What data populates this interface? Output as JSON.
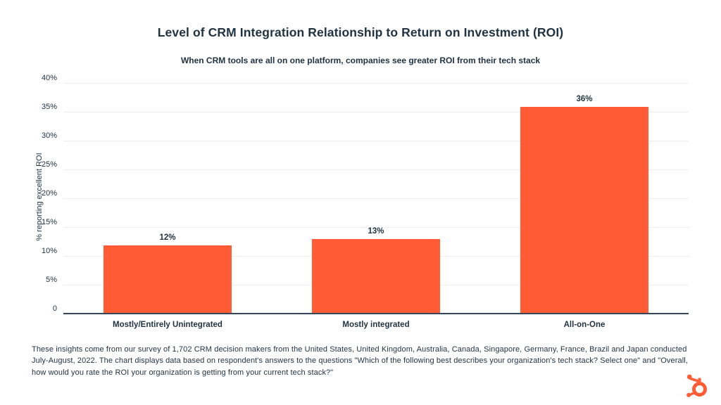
{
  "page": {
    "title": "Level of CRM Integration Relationship to Return on Investment (ROI)",
    "subtitle": "When CRM tools are all on one platform, companies see greater ROI from their tech stack",
    "footnote": "These insights come from our survey of 1,702 CRM decision makers from the United States, United Kingdom, Australia, Canada, Singapore, Germany, France, Brazil and Japan conducted July-August, 2022. The chart displays data based on respondent's answers to the questions \"Which of the following best describes your organization's tech stack? Select one\" and \"Overall, how would you rate the ROI your organization is getting from your current tech stack?\""
  },
  "chart_data": {
    "type": "bar",
    "title": "Level of CRM Integration Relationship to Return on Investment (ROI)",
    "subtitle": "When CRM tools are all on one platform, companies see greater ROI from their tech stack",
    "categories": [
      "Mostly/Entirely Unintegrated",
      "Mostly integrated",
      "All-on-One"
    ],
    "values": [
      12,
      13,
      36
    ],
    "value_labels": [
      "12%",
      "13%",
      "36%"
    ],
    "xlabel": "",
    "ylabel": "% reporting excellent ROI",
    "ylim": [
      0,
      40
    ],
    "y_ticks": [
      0,
      5,
      10,
      15,
      20,
      25,
      30,
      35,
      40
    ],
    "y_tick_labels": [
      "0",
      "5%",
      "10%",
      "15%",
      "20%",
      "25%",
      "30%",
      "35%",
      "40%"
    ],
    "grid": "horizontal-on",
    "legend": "none",
    "bar_color": "#FF5C35"
  },
  "colors": {
    "accent_orange": "#FF5C35",
    "text_navy": "#213343",
    "axis_line": "#33475b",
    "gridline": "#ebedef",
    "background": "#ffffff"
  },
  "icons": {
    "logo": "hubspot-sprocket-icon"
  }
}
